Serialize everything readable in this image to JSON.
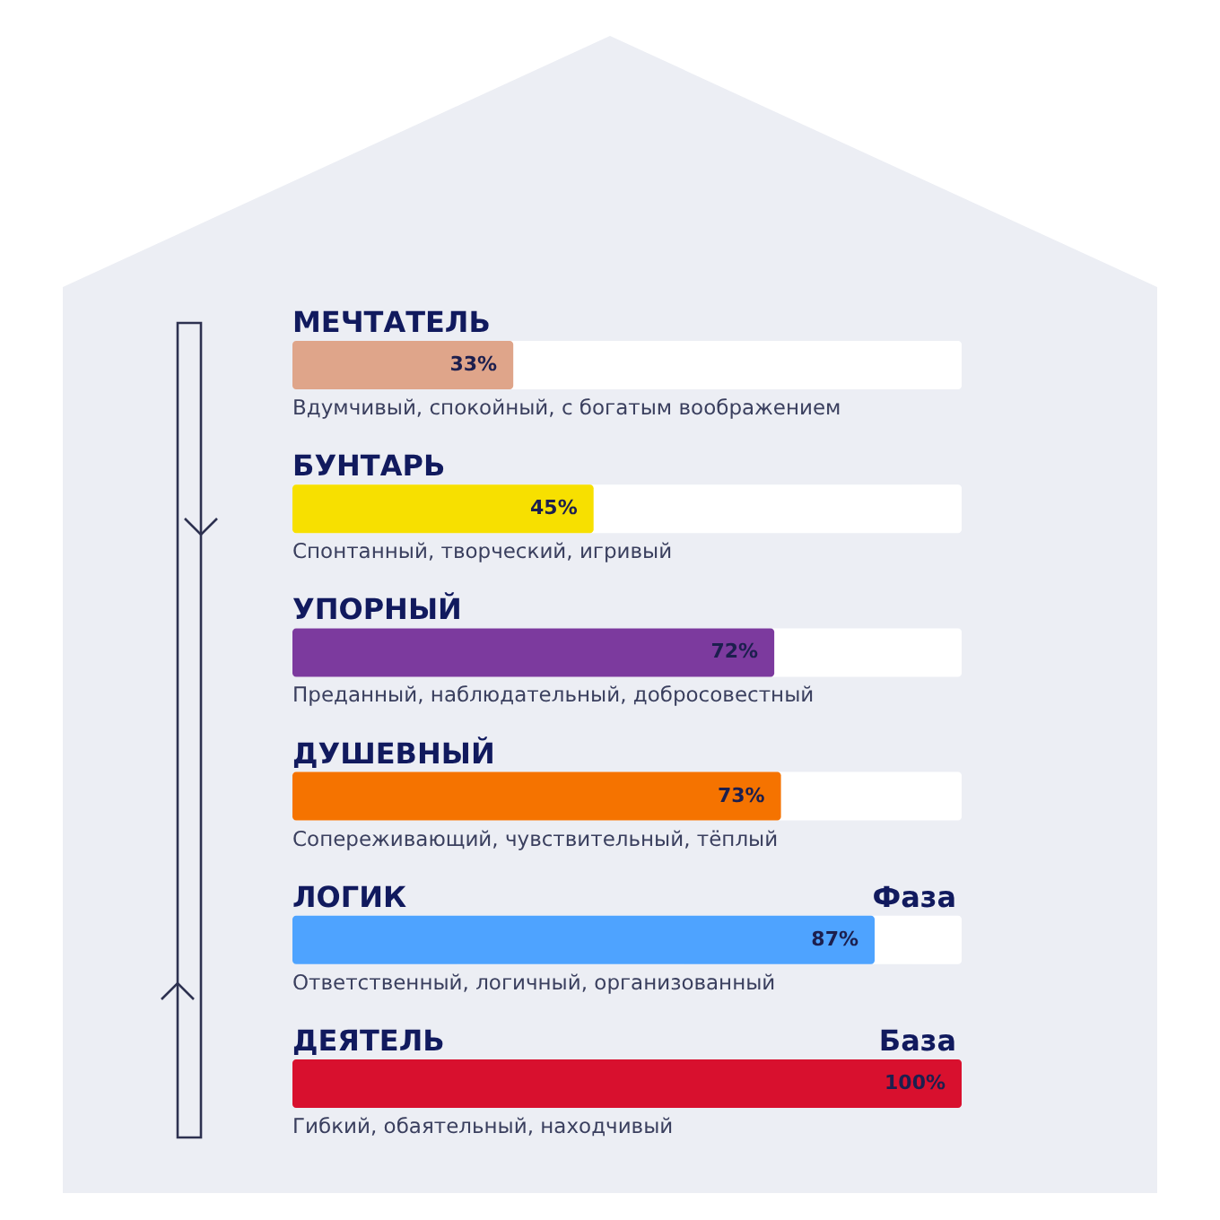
{
  "chart_data": {
    "type": "bar",
    "orientation": "horizontal",
    "categories": [
      "МЕЧТАТЕЛЬ",
      "БУНТАРЬ",
      "УПОРНЫЙ",
      "ДУШЕВНЫЙ",
      "ЛОГИК",
      "ДЕЯТЕЛЬ"
    ],
    "values": [
      33,
      45,
      72,
      73,
      87,
      100
    ],
    "colors": [
      "#dfa58a",
      "#f7e000",
      "#7c3a9e",
      "#f57300",
      "#4ea3ff",
      "#d8102e"
    ],
    "value_labels": [
      "33%",
      "45%",
      "72%",
      "73%",
      "87%",
      "100%"
    ],
    "xlim": [
      0,
      100
    ],
    "tick_labels": "y",
    "annotations": [
      "Вдумчивый, спокойный, с богатым воображением",
      "Спонтанный, творческий, игривый",
      "Преданный, наблюдательный, добросовестный",
      "Сопереживающий, чувствительный, тёплый",
      "Ответственный, логичный, организованный",
      "Гибкий, обаятельный, находчивый",
      "Фаза",
      "База"
    ]
  }
}
